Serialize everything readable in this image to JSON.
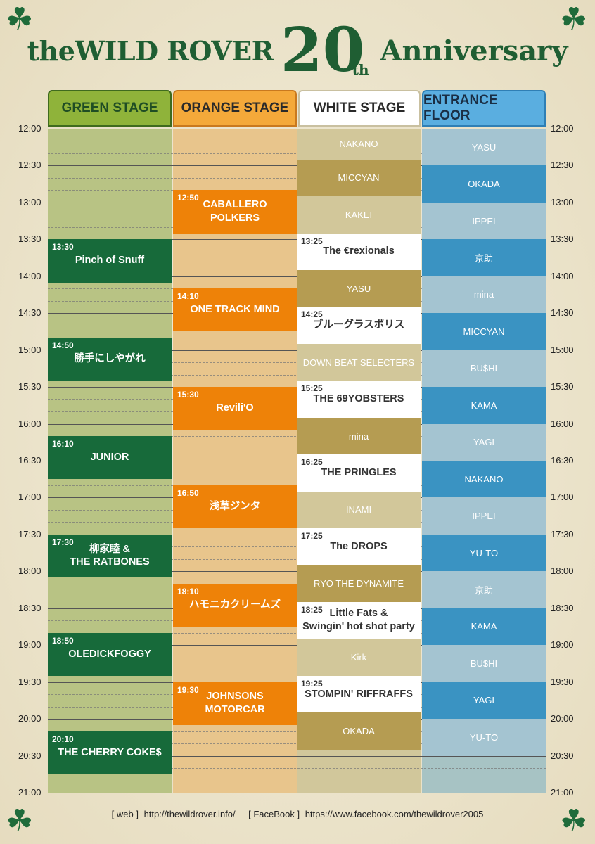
{
  "title": {
    "brand": "theWILD ROVER",
    "number": "20",
    "suffix": "th",
    "word": "Anniversary"
  },
  "stages": [
    {
      "name": "GREEN STAGE",
      "color": "#8fb33a"
    },
    {
      "name": "ORANGE STAGE",
      "color": "#f4a93a"
    },
    {
      "name": "WHITE STAGE",
      "color": "#ffffff"
    },
    {
      "name": "ENTRANCE FLOOR",
      "color": "#5aaee0"
    }
  ],
  "times": [
    "12:00",
    "12:30",
    "13:00",
    "13:30",
    "14:00",
    "14:30",
    "15:00",
    "15:30",
    "16:00",
    "16:30",
    "17:00",
    "17:30",
    "18:00",
    "18:30",
    "19:00",
    "19:30",
    "20:00",
    "20:30",
    "21:00"
  ],
  "green_stage": [
    {
      "time": "13:30",
      "name": "Pinch of Snuff"
    },
    {
      "time": "14:50",
      "name": "勝手にしやがれ"
    },
    {
      "time": "16:10",
      "name": "JUNIOR"
    },
    {
      "time": "17:30",
      "name": "柳家睦 &\nTHE RATBONES"
    },
    {
      "time": "18:50",
      "name": "OLEDICKFOGGY"
    },
    {
      "time": "20:10",
      "name": "THE CHERRY COKE$"
    }
  ],
  "orange_stage": [
    {
      "time": "12:50",
      "name": "CABALLERO POLKERS"
    },
    {
      "time": "14:10",
      "name": "ONE TRACK MIND"
    },
    {
      "time": "15:30",
      "name": "Revili'O"
    },
    {
      "time": "16:50",
      "name": "浅草ジンタ"
    },
    {
      "time": "18:10",
      "name": "ハモニカクリームズ"
    },
    {
      "time": "19:30",
      "name": "JOHNSONS\nMOTORCAR"
    }
  ],
  "white_stage_djs": [
    "NAKANO",
    "MICCYAN",
    "KAKEI",
    "YASU",
    "DOWN BEAT SELECTERS",
    "mina",
    "INAMI",
    "RYO THE DYNAMITE",
    "Kirk",
    "OKADA"
  ],
  "white_stage_bands": [
    {
      "time": "13:25",
      "name": "The €rexionals"
    },
    {
      "time": "14:25",
      "name": "ブルーグラスポリス"
    },
    {
      "time": "15:25",
      "name": "THE 69YOBSTERS"
    },
    {
      "time": "16:25",
      "name": "THE PRINGLES"
    },
    {
      "time": "17:25",
      "name": "The DROPS"
    },
    {
      "time": "18:25",
      "name": "Little Fats &\nSwingin' hot shot party"
    },
    {
      "time": "19:25",
      "name": "STOMPIN' RIFFRAFFS"
    }
  ],
  "entrance_floor": [
    "YASU",
    "OKADA",
    "IPPEI",
    "京助",
    "mina",
    "MICCYAN",
    "BU$HI",
    "KAMA",
    "YAGI",
    "NAKANO",
    "IPPEI",
    "YU-TO",
    "京助",
    "KAMA",
    "BU$HI",
    "YAGI",
    "YU-TO"
  ],
  "footer": {
    "web_label": "[ web ]",
    "web_url": "http://thewildrover.info/",
    "fb_label": "[ FaceBook ]",
    "fb_url": "https://www.facebook.com/thewildrover2005"
  },
  "icons": [
    "clover-icon"
  ]
}
